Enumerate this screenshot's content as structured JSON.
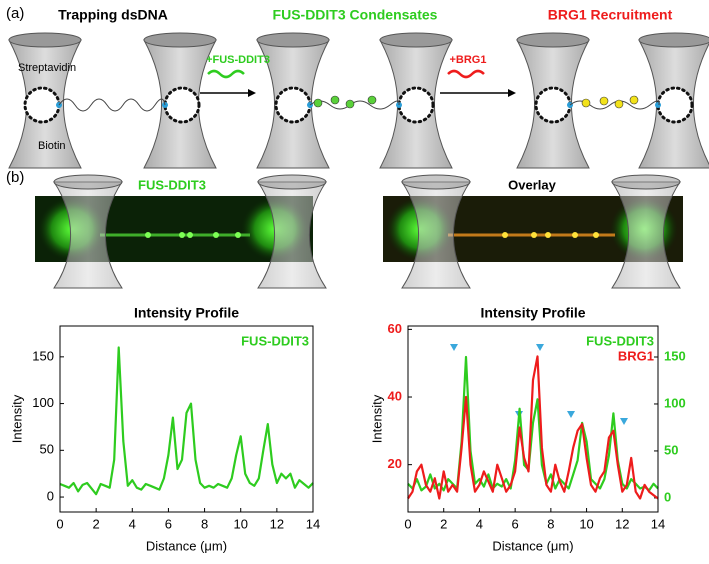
{
  "panel_a": {
    "label": "(a)",
    "step1": "Trapping dsDNA",
    "step2": "FUS-DDIT3 Condensates",
    "step3": "BRG1 Recruitment",
    "streptavidin": "Streptavidin",
    "biotin": "Biotin",
    "add_fus": "+FUS-DDIT3",
    "add_brg1": "+BRG1"
  },
  "panel_b": {
    "label": "(b)",
    "image_left_title": "FUS-DDIT3",
    "image_right_title": "Overlay"
  },
  "chart_data": [
    {
      "type": "line",
      "title": "Intensity Profile",
      "xlabel": "Distance (μm)",
      "ylabel": "Intensity",
      "x": [
        0,
        0.25,
        0.5,
        0.75,
        1,
        1.25,
        1.5,
        1.75,
        2,
        2.25,
        2.5,
        2.75,
        3,
        3.25,
        3.5,
        3.75,
        4,
        4.25,
        4.5,
        4.75,
        5,
        5.25,
        5.5,
        5.75,
        6,
        6.25,
        6.5,
        6.75,
        7,
        7.25,
        7.5,
        7.75,
        8,
        8.25,
        8.5,
        8.75,
        9,
        9.25,
        9.5,
        9.75,
        10,
        10.25,
        10.5,
        10.75,
        11,
        11.25,
        11.5,
        11.75,
        12,
        12.25,
        12.5,
        12.75,
        13,
        13.25,
        13.5,
        13.75,
        14
      ],
      "series": [
        {
          "name": "FUS-DDIT3",
          "color": "#2ecc1f",
          "values": [
            14,
            12,
            10,
            15,
            6,
            13,
            15,
            9,
            3,
            14,
            12,
            10,
            40,
            160,
            60,
            12,
            18,
            10,
            8,
            14,
            12,
            10,
            8,
            20,
            45,
            85,
            30,
            40,
            90,
            100,
            40,
            15,
            10,
            12,
            10,
            14,
            12,
            10,
            20,
            45,
            65,
            25,
            15,
            12,
            20,
            50,
            78,
            35,
            15,
            25,
            20,
            25,
            10,
            18,
            14,
            10,
            15
          ]
        }
      ],
      "xlim": [
        0,
        14
      ],
      "xticks": [
        0,
        2,
        4,
        6,
        8,
        10,
        12,
        14
      ],
      "ylim": [
        -16,
        183
      ],
      "yticks": [
        0,
        50,
        100,
        150
      ],
      "grid": false,
      "legend": "upper right"
    },
    {
      "type": "line",
      "title": "Intensity Profile",
      "xlabel": "Distance (μm)",
      "ylabel": "Intensity",
      "x": [
        0,
        0.25,
        0.5,
        0.75,
        1,
        1.25,
        1.5,
        1.75,
        2,
        2.25,
        2.5,
        2.75,
        3,
        3.25,
        3.5,
        3.75,
        4,
        4.25,
        4.5,
        4.75,
        5,
        5.25,
        5.5,
        5.75,
        6,
        6.25,
        6.5,
        6.75,
        7,
        7.25,
        7.5,
        7.75,
        8,
        8.25,
        8.5,
        8.75,
        9,
        9.25,
        9.5,
        9.75,
        10,
        10.25,
        10.5,
        10.75,
        11,
        11.25,
        11.5,
        11.75,
        12,
        12.25,
        12.5,
        12.75,
        13,
        13.25,
        13.5,
        13.75,
        14
      ],
      "series": [
        {
          "name": "FUS-DDIT3",
          "color": "#2ecc1f",
          "axis": "y2",
          "values": [
            15,
            10,
            20,
            8,
            12,
            25,
            10,
            15,
            8,
            20,
            15,
            10,
            60,
            150,
            50,
            15,
            20,
            12,
            25,
            10,
            15,
            12,
            20,
            10,
            40,
            95,
            35,
            30,
            80,
            105,
            35,
            15,
            25,
            10,
            20,
            15,
            10,
            25,
            40,
            80,
            60,
            20,
            15,
            10,
            20,
            45,
            90,
            40,
            15,
            10,
            20,
            15,
            10,
            12,
            8,
            15,
            10
          ]
        },
        {
          "name": "BRG1",
          "color": "#ee1c1c",
          "values": [
            10,
            12,
            18,
            20,
            14,
            12,
            16,
            10,
            18,
            12,
            14,
            12,
            25,
            40,
            20,
            12,
            14,
            18,
            15,
            12,
            20,
            16,
            12,
            14,
            18,
            31,
            22,
            18,
            45,
            52,
            25,
            14,
            12,
            20,
            15,
            12,
            18,
            25,
            30,
            32,
            22,
            14,
            12,
            16,
            18,
            28,
            30,
            20,
            12,
            14,
            22,
            12,
            10,
            14,
            12,
            11,
            10
          ]
        }
      ],
      "xlim": [
        0,
        14
      ],
      "xticks": [
        0,
        2,
        4,
        6,
        8,
        10,
        12,
        14
      ],
      "ylim": [
        6,
        61
      ],
      "yticks": [
        20,
        40,
        60
      ],
      "y2lim": [
        -15,
        183
      ],
      "y2ticks": [
        0,
        50,
        100,
        150
      ],
      "grid": false,
      "legend": "upper right"
    }
  ]
}
